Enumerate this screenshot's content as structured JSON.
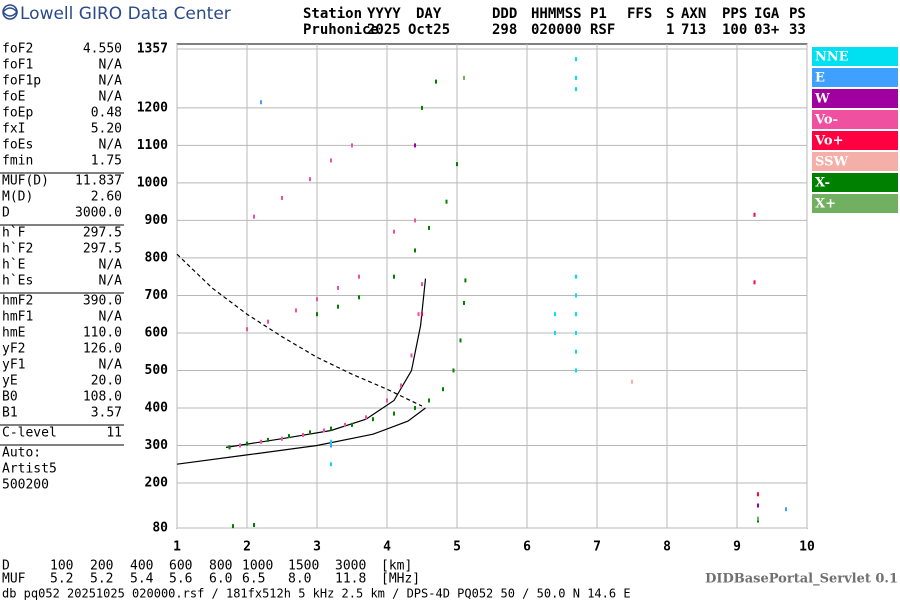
{
  "logo": "Lowell GIRO Data Center",
  "station_header": {
    "labels": [
      "Station",
      "YYYY",
      "DAY",
      "DDD",
      "HHMMSS",
      "P1",
      "FFS",
      "S",
      "AXN",
      "PPS",
      "IGA",
      "PS"
    ],
    "values": [
      "Pruhonice",
      "2025",
      "Oct25",
      "298",
      "020000",
      "RSF",
      null,
      "1",
      "713",
      "100",
      "03+",
      "33"
    ]
  },
  "parameter_groups": [
    [
      [
        "foF2",
        "4.550"
      ],
      [
        "foF1",
        "N/A"
      ],
      [
        "foF1p",
        "N/A"
      ],
      [
        "foE",
        "N/A"
      ],
      [
        "foEp",
        "0.48"
      ],
      [
        "fxI",
        "5.20"
      ],
      [
        "foEs",
        "N/A"
      ],
      [
        "fmin",
        "1.75"
      ]
    ],
    [
      [
        "MUF(D)",
        "11.837"
      ],
      [
        "M(D)",
        "2.60"
      ],
      [
        "D",
        "3000.0"
      ]
    ],
    [
      [
        "h`F",
        "297.5"
      ],
      [
        "h`F2",
        "297.5"
      ],
      [
        "h`E",
        "N/A"
      ],
      [
        "h`Es",
        "N/A"
      ]
    ],
    [
      [
        "hmF2",
        "390.0"
      ],
      [
        "hmF1",
        "N/A"
      ],
      [
        "hmE",
        "110.0"
      ],
      [
        "yF2",
        "126.0"
      ],
      [
        "yF1",
        "N/A"
      ],
      [
        "yE",
        "20.0"
      ],
      [
        "B0",
        "108.0"
      ],
      [
        "B1",
        "3.57"
      ]
    ],
    [
      [
        "C-level",
        "11"
      ]
    ]
  ],
  "notes": [
    "Auto:",
    "Artist5",
    "500200"
  ],
  "distance_table": [
    [
      "D",
      "100",
      "200",
      "400",
      "600",
      "800",
      "1000",
      "1500",
      "3000",
      "[km]"
    ],
    [
      "MUF",
      "5.2",
      "5.2",
      "5.4",
      "5.6",
      "6.0",
      "6.5",
      "8.0",
      "11.8",
      "[MHz]"
    ]
  ],
  "servlet": "DIDBasePortal_Servlet 0.1",
  "footer": "db pq052 20251025 020000.rsf / 181fx512h 5 kHz 2.5 km / DPS-4D PQ052 50 / 50.0 N 14.6 E",
  "chart_data": {
    "type": "scatter",
    "xlim": [
      1,
      10
    ],
    "ylim": [
      80,
      1357
    ],
    "xticks": [
      1,
      2,
      3,
      4,
      5,
      6,
      7,
      8,
      9,
      10
    ],
    "yticks": [
      80,
      200,
      300,
      400,
      500,
      600,
      700,
      800,
      900,
      1000,
      1100,
      1200,
      1357
    ],
    "grid": true,
    "legend": "right",
    "series": [
      {
        "name": "NNE",
        "color": "#00e0f0",
        "x": [
          6.7,
          6.7,
          6.7,
          6.7,
          6.7,
          6.7,
          6.7,
          6.7,
          6.7,
          6.4,
          6.4,
          3.2,
          3.2
        ],
        "y": [
          500,
          550,
          600,
          650,
          700,
          750,
          1250,
          1280,
          1330,
          600,
          650,
          250,
          310
        ]
      },
      {
        "name": "E",
        "color": "#40a0ff",
        "x": [
          2.2,
          3.2,
          9.7
        ],
        "y": [
          1215,
          300,
          130
        ]
      },
      {
        "name": "W",
        "color": "#a000a0",
        "x": [
          4.4,
          9.3
        ],
        "y": [
          1100,
          140
        ]
      },
      {
        "name": "Vo-",
        "color": "#f050a0",
        "x": [
          1.9,
          2.2,
          2.5,
          2.8,
          3.1,
          3.4,
          3.7,
          4.0,
          4.2,
          4.35,
          4.45,
          4.5,
          2.0,
          2.3,
          2.7,
          3.0,
          3.3,
          3.6,
          2.1,
          2.5,
          2.9,
          3.2,
          3.5,
          4.1,
          4.4
        ],
        "y": [
          300,
          310,
          318,
          328,
          340,
          355,
          375,
          420,
          460,
          540,
          650,
          730,
          610,
          630,
          660,
          690,
          720,
          750,
          910,
          960,
          1010,
          1060,
          1100,
          870,
          900
        ]
      },
      {
        "name": "Vo+",
        "color": "#ff0040",
        "x": [
          9.25,
          9.25,
          4.5,
          9.3
        ],
        "y": [
          915,
          735,
          650,
          170
        ]
      },
      {
        "name": "SSW",
        "color": "#f4b0a8",
        "x": [
          7.5
        ],
        "y": [
          470
        ]
      },
      {
        "name": "X-",
        "color": "#008000",
        "x": [
          1.75,
          2.0,
          2.3,
          2.6,
          2.9,
          3.2,
          3.5,
          3.8,
          4.1,
          4.4,
          4.6,
          4.8,
          4.95,
          5.05,
          5.1,
          5.12,
          3.0,
          3.3,
          3.6,
          4.1,
          4.4,
          4.6,
          4.85,
          5.0,
          4.5,
          4.7,
          1.8,
          2.1,
          9.3
        ],
        "y": [
          295,
          305,
          315,
          325,
          335,
          345,
          355,
          370,
          385,
          400,
          420,
          450,
          500,
          580,
          680,
          740,
          650,
          670,
          695,
          750,
          820,
          880,
          950,
          1050,
          1200,
          1270,
          85,
          88,
          100
        ]
      },
      {
        "name": "X+",
        "color": "#70b060",
        "x": [
          9.3,
          5.1
        ],
        "y": [
          105,
          1280
        ]
      }
    ],
    "curves": [
      {
        "style": "solid",
        "x": [
          1,
          2,
          3,
          3.8,
          4.3,
          4.55
        ],
        "y": [
          250,
          275,
          300,
          330,
          365,
          400
        ]
      },
      {
        "style": "solid",
        "x": [
          1.7,
          2.5,
          3.2,
          3.7,
          4.1,
          4.35,
          4.48,
          4.55
        ],
        "y": [
          295,
          318,
          340,
          370,
          420,
          500,
          620,
          745
        ]
      },
      {
        "style": "dashed",
        "x": [
          1,
          1.5,
          2,
          2.5,
          3,
          3.5,
          4,
          4.5
        ],
        "y": [
          810,
          720,
          650,
          590,
          535,
          490,
          450,
          405
        ]
      }
    ]
  }
}
